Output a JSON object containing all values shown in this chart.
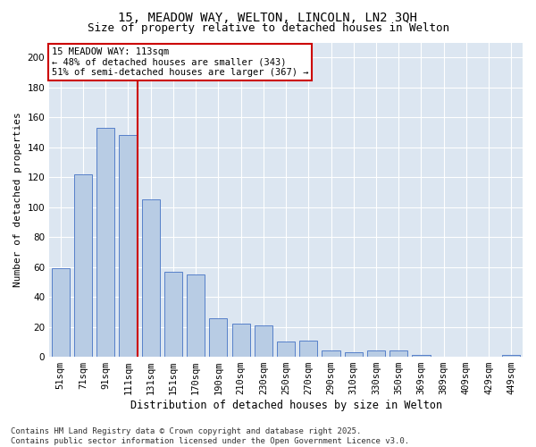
{
  "title_line1": "15, MEADOW WAY, WELTON, LINCOLN, LN2 3QH",
  "title_line2": "Size of property relative to detached houses in Welton",
  "xlabel": "Distribution of detached houses by size in Welton",
  "ylabel": "Number of detached properties",
  "categories": [
    "51sqm",
    "71sqm",
    "91sqm",
    "111sqm",
    "131sqm",
    "151sqm",
    "170sqm",
    "190sqm",
    "210sqm",
    "230sqm",
    "250sqm",
    "270sqm",
    "290sqm",
    "310sqm",
    "330sqm",
    "350sqm",
    "369sqm",
    "389sqm",
    "409sqm",
    "429sqm",
    "449sqm"
  ],
  "values": [
    59,
    122,
    153,
    148,
    105,
    57,
    55,
    26,
    22,
    21,
    10,
    11,
    4,
    3,
    4,
    4,
    1,
    0,
    0,
    0,
    1
  ],
  "bar_color": "#b8cce4",
  "bar_edge_color": "#4472c4",
  "vline_x_index": 3,
  "vline_color": "#cc0000",
  "annotation_line1": "15 MEADOW WAY: 113sqm",
  "annotation_line2": "← 48% of detached houses are smaller (343)",
  "annotation_line3": "51% of semi-detached houses are larger (367) →",
  "annotation_box_edge_color": "#cc0000",
  "ylim": [
    0,
    210
  ],
  "yticks": [
    0,
    20,
    40,
    60,
    80,
    100,
    120,
    140,
    160,
    180,
    200
  ],
  "fig_bg_color": "#ffffff",
  "axes_bg_color": "#dce6f1",
  "grid_color": "#ffffff",
  "footer_line1": "Contains HM Land Registry data © Crown copyright and database right 2025.",
  "footer_line2": "Contains public sector information licensed under the Open Government Licence v3.0.",
  "title1_fontsize": 10,
  "title2_fontsize": 9,
  "xlabel_fontsize": 8.5,
  "ylabel_fontsize": 8,
  "tick_fontsize": 7.5,
  "annotation_fontsize": 7.5,
  "footer_fontsize": 6.5
}
